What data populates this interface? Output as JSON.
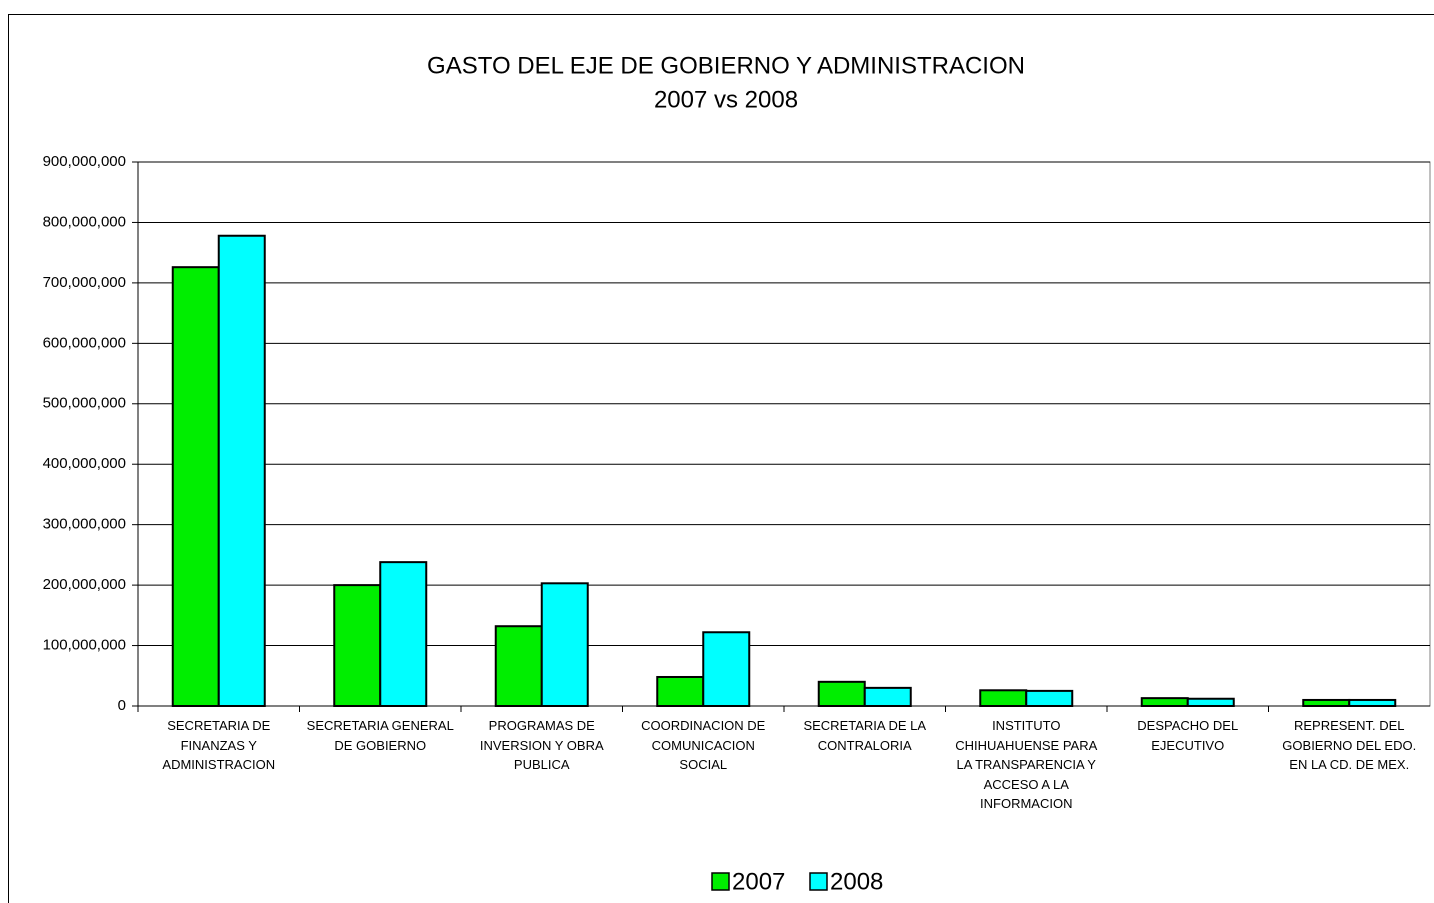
{
  "chart_data": {
    "type": "bar",
    "title": "GASTO DEL EJE DE GOBIERNO Y ADMINISTRACION",
    "subtitle": "2007 vs 2008",
    "categories": [
      "SECRETARIA DE FINANZAS Y ADMINISTRACION",
      "SECRETARIA GENERAL DE GOBIERNO",
      "PROGRAMAS DE INVERSION Y OBRA PUBLICA",
      "COORDINACION DE COMUNICACION SOCIAL",
      "SECRETARIA DE LA CONTRALORIA",
      "INSTITUTO CHIHUAHUENSE PARA LA TRANSPARENCIA Y ACCESO A LA INFORMACION",
      "DESPACHO DEL EJECUTIVO",
      "REPRESENT. DEL GOBIERNO DEL EDO. EN LA CD. DE MEX."
    ],
    "series": [
      {
        "name": "2007",
        "color": "#00ee00",
        "values": [
          726000000,
          200000000,
          132000000,
          48000000,
          40000000,
          26000000,
          13000000,
          10000000
        ]
      },
      {
        "name": "2008",
        "color": "#00ffff",
        "values": [
          778000000,
          238000000,
          203000000,
          122000000,
          30000000,
          25000000,
          12000000,
          10000000
        ]
      }
    ],
    "ylim": [
      0,
      900000000
    ],
    "yticks": [
      0,
      {
        "value": 100000000,
        "label": "100,000,000"
      },
      {
        "value": 200000000,
        "label": "200,000,000"
      },
      {
        "value": 300000000,
        "label": "300,000,000"
      },
      {
        "value": 400000000,
        "label": "400,000,000"
      },
      {
        "value": 500000000,
        "label": "500,000,000"
      },
      {
        "value": 600000000,
        "label": "600,000,000"
      },
      {
        "value": 700000000,
        "label": "700,000,000"
      },
      {
        "value": 800000000,
        "label": "800,000,000"
      },
      {
        "value": 900000000,
        "label": "900,000,000"
      }
    ],
    "grid": true,
    "legend": "bottom"
  }
}
